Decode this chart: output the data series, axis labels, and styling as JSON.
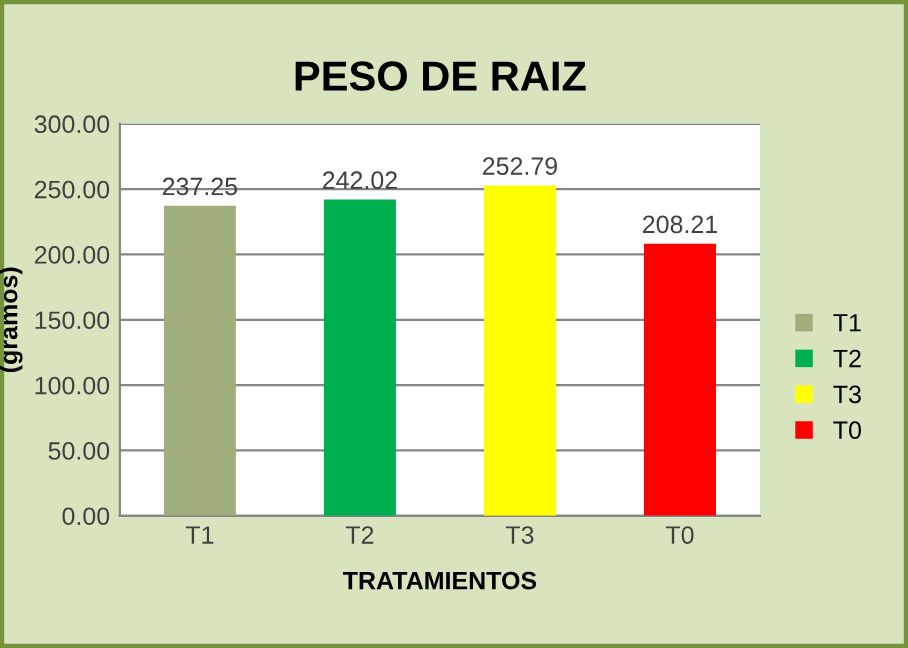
{
  "chart_data": {
    "type": "bar",
    "title": "PESO DE RAIZ",
    "xlabel": "TRATAMIENTOS",
    "ylabel": "(gramos)",
    "categories": [
      "T1",
      "T2",
      "T3",
      "T0"
    ],
    "series": [
      {
        "name": "T1",
        "color": "#a2ad7c",
        "values": [
          237.25,
          null,
          null,
          null
        ]
      },
      {
        "name": "T2",
        "color": "#00b050",
        "values": [
          null,
          242.02,
          null,
          null
        ]
      },
      {
        "name": "T3",
        "color": "#ffff00",
        "values": [
          null,
          null,
          252.79,
          null
        ]
      },
      {
        "name": "T0",
        "color": "#ff0000",
        "values": [
          null,
          null,
          null,
          208.21
        ]
      }
    ],
    "ylim": [
      0,
      300
    ],
    "yticks": [
      {
        "value": 0,
        "label": "0.00"
      },
      {
        "value": 50,
        "label": "50.00"
      },
      {
        "value": 100,
        "label": "100.00"
      },
      {
        "value": 150,
        "label": "150.00"
      },
      {
        "value": 200,
        "label": "200.00"
      },
      {
        "value": 250,
        "label": "250.00"
      },
      {
        "value": 300,
        "label": "300.00"
      }
    ],
    "grid": "y",
    "legend": "right",
    "data_labels": true
  }
}
